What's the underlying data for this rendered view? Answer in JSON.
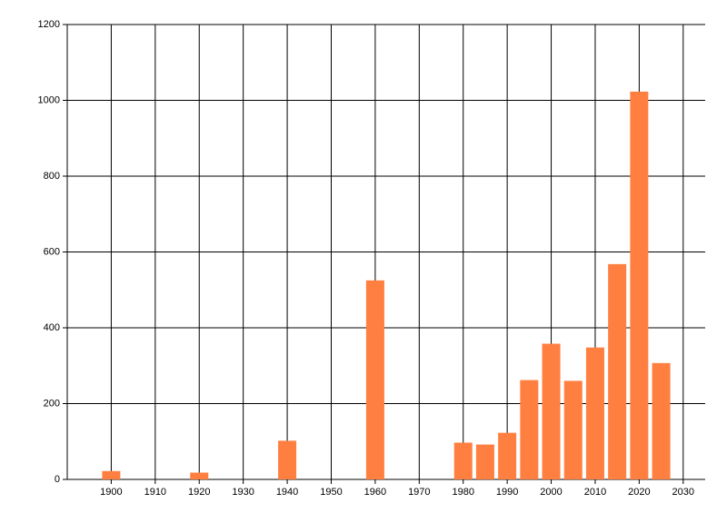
{
  "chart_data": {
    "type": "bar",
    "x": [
      1900,
      1920,
      1940,
      1960,
      1980,
      1985,
      1990,
      1995,
      2000,
      2005,
      2010,
      2015,
      2020,
      2025
    ],
    "values": [
      22,
      18,
      102,
      525,
      97,
      92,
      123,
      262,
      358,
      260,
      348,
      568,
      1023,
      307
    ],
    "color": "#ff7f41",
    "xlim": [
      1890,
      2035
    ],
    "xticks": [
      1900,
      1910,
      1920,
      1930,
      1940,
      1950,
      1960,
      1970,
      1980,
      1990,
      2000,
      2010,
      2020,
      2030
    ],
    "ylim": [
      0,
      1200
    ],
    "yticks": [
      0,
      200,
      400,
      600,
      800,
      1000,
      1200
    ],
    "grid": true
  }
}
